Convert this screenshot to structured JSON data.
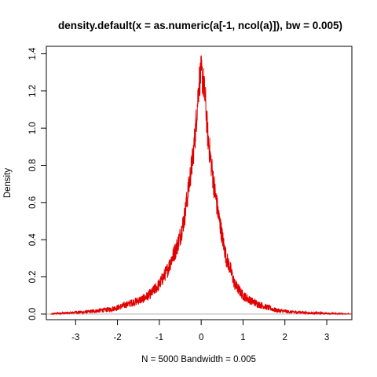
{
  "chart_data": {
    "type": "line",
    "title": "density.default(x = as.numeric(a[-1, ncol(a)]), bw = 0.005)",
    "xlabel": "N = 5000   Bandwidth = 0.005",
    "ylabel": "Density",
    "xlim": [
      -3.7,
      3.6
    ],
    "ylim": [
      -0.03,
      1.44
    ],
    "x_ticks": [
      -3,
      -2,
      -1,
      0,
      1,
      2,
      3
    ],
    "y_ticks": [
      0.0,
      0.2,
      0.4,
      0.6,
      0.8,
      1.0,
      1.2,
      1.4
    ],
    "x_tick_labels": [
      "-3",
      "-2",
      "-1",
      "0",
      "1",
      "2",
      "3"
    ],
    "y_tick_labels": [
      "0.0",
      "0.2",
      "0.4",
      "0.6",
      "0.8",
      "1.0",
      "1.2",
      "1.4"
    ],
    "zero_line": true,
    "grid": false,
    "series": [
      {
        "color": "#e00000",
        "x": [
          -3.6,
          -3.4,
          -3.2,
          -3.0,
          -2.8,
          -2.6,
          -2.4,
          -2.2,
          -2.0,
          -1.8,
          -1.6,
          -1.4,
          -1.2,
          -1.0,
          -0.8,
          -0.7,
          -0.6,
          -0.5,
          -0.4,
          -0.3,
          -0.2,
          -0.15,
          -0.1,
          -0.05,
          0.0,
          0.05,
          0.1,
          0.15,
          0.2,
          0.3,
          0.4,
          0.5,
          0.6,
          0.7,
          0.8,
          1.0,
          1.2,
          1.4,
          1.6,
          1.8,
          2.0,
          2.2,
          2.4,
          2.6,
          2.8,
          3.0,
          3.2,
          3.4,
          3.6
        ],
        "y": [
          0.0,
          0.005,
          0.005,
          0.01,
          0.01,
          0.015,
          0.02,
          0.025,
          0.035,
          0.05,
          0.065,
          0.08,
          0.11,
          0.16,
          0.24,
          0.3,
          0.35,
          0.42,
          0.52,
          0.68,
          0.84,
          0.95,
          1.1,
          1.25,
          1.3,
          1.25,
          1.15,
          0.98,
          0.88,
          0.7,
          0.55,
          0.42,
          0.3,
          0.24,
          0.16,
          0.1,
          0.07,
          0.05,
          0.035,
          0.02,
          0.015,
          0.01,
          0.01,
          0.005,
          0.005,
          0.003,
          0.002,
          0.001,
          0.0
        ]
      }
    ]
  }
}
